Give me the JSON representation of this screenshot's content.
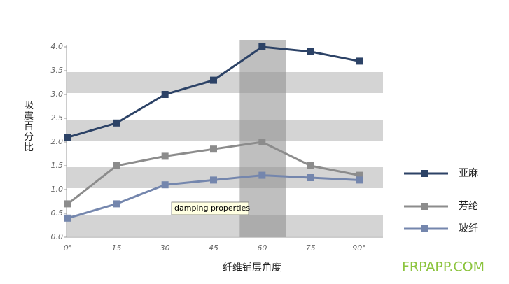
{
  "chart_data": {
    "type": "line",
    "x_label": "纤维铺层角度",
    "y_label": "吸震百分比",
    "annotation": "damping properties",
    "categories": [
      "0°",
      "15",
      "30",
      "45",
      "60",
      "75",
      "90°"
    ],
    "series": [
      {
        "name": "亚麻",
        "color": "#2c4266",
        "values": [
          2.1,
          2.4,
          3.0,
          3.3,
          4.0,
          3.9,
          3.7
        ]
      },
      {
        "name": "芳纶",
        "color": "#8c8c8c",
        "values": [
          0.7,
          1.5,
          1.7,
          1.85,
          2.0,
          1.5,
          1.3
        ]
      },
      {
        "name": "玻纤",
        "color": "#7486ad",
        "values": [
          0.4,
          0.7,
          1.1,
          1.2,
          1.3,
          1.25,
          1.2
        ]
      }
    ],
    "ylim": [
      0,
      4
    ],
    "yticks": [
      {
        "value": 0,
        "label": "0.0"
      },
      0.5,
      {
        "value": 1,
        "label": "1.0"
      },
      1.5,
      {
        "value": 2,
        "label": "2.0"
      },
      2.5,
      {
        "value": 3,
        "label": "3.0"
      },
      3.5,
      {
        "value": 4,
        "label": "4.0"
      }
    ],
    "highlight_category": 4
  },
  "watermark": "FRPAPP.COM"
}
